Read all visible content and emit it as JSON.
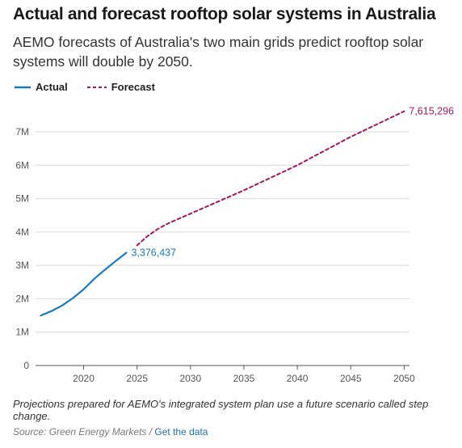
{
  "header": {
    "title": "Actual and forecast rooftop solar systems in Australia",
    "subtitle": "AEMO forecasts of Australia's two main grids predict rooftop solar systems will double by 2050."
  },
  "legend": {
    "actual_label": "Actual",
    "forecast_label": "Forecast"
  },
  "footer": {
    "note": "Projections prepared for AEMO's integrated system plan use a future scenario called step change.",
    "source_prefix": "Source: Green Energy Markets / ",
    "source_link": "Get the data"
  },
  "chart_data": {
    "type": "line",
    "xlim": [
      2015.5,
      2050.5
    ],
    "ylim": [
      0,
      7800000
    ],
    "x_ticks": [
      2020,
      2025,
      2030,
      2035,
      2040,
      2045,
      2050
    ],
    "y_ticks": [
      0,
      1000000,
      2000000,
      3000000,
      4000000,
      5000000,
      6000000,
      7000000
    ],
    "y_tick_labels": [
      "0",
      "1M",
      "2M",
      "3M",
      "4M",
      "5M",
      "6M",
      "7M"
    ],
    "grid": "horizontal",
    "series": [
      {
        "name": "Actual",
        "color": "#1a7ac1",
        "style": "solid",
        "x": [
          2016,
          2017,
          2018,
          2019,
          2020,
          2021,
          2022,
          2023,
          2024
        ],
        "y": [
          1500000,
          1630000,
          1800000,
          2020000,
          2280000,
          2600000,
          2870000,
          3130000,
          3376437
        ],
        "end_label": "3,376,437"
      },
      {
        "name": "Forecast",
        "color": "#a3195b",
        "style": "dashed",
        "x": [
          2025,
          2026,
          2027,
          2028,
          2030,
          2035,
          2040,
          2045,
          2050
        ],
        "y": [
          3600000,
          3880000,
          4100000,
          4270000,
          4550000,
          5250000,
          6000000,
          6850000,
          7615296
        ],
        "end_label": "7,615,296"
      }
    ]
  }
}
